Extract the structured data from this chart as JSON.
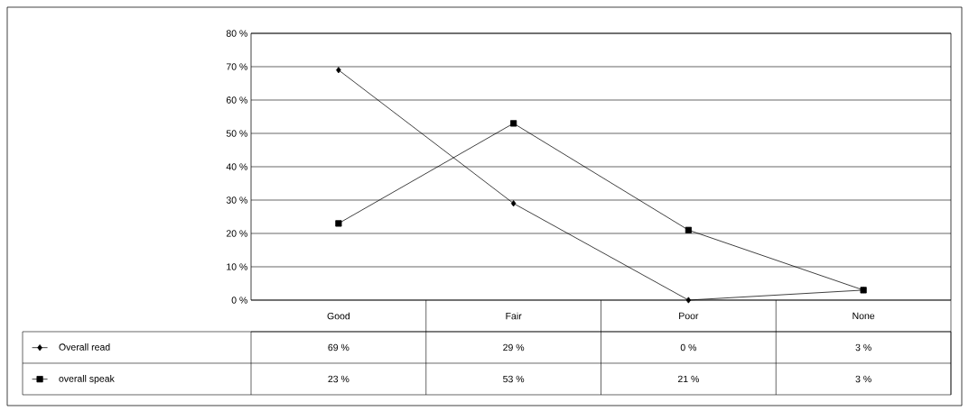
{
  "chart_data": {
    "type": "line",
    "categories": [
      "Good",
      "Fair",
      "Poor",
      "None"
    ],
    "series": [
      {
        "name": "Overall read",
        "color": "#000000",
        "marker": "diamond",
        "values": [
          69,
          29,
          0,
          3
        ],
        "value_labels": [
          "69 %",
          "29 %",
          "0 %",
          "3 %"
        ]
      },
      {
        "name": "overall speak",
        "color": "#000000",
        "marker": "square",
        "values": [
          23,
          53,
          21,
          3
        ],
        "value_labels": [
          "23 %",
          "53 %",
          "21 %",
          "3 %"
        ]
      }
    ],
    "ylim": [
      0,
      80
    ],
    "yticks": [
      {
        "value": 0,
        "label": "0 %"
      },
      {
        "value": 10,
        "label": "10 %"
      },
      {
        "value": 20,
        "label": "20 %"
      },
      {
        "value": 30,
        "label": "30 %"
      },
      {
        "value": 40,
        "label": "40 %"
      },
      {
        "value": 50,
        "label": "50 %"
      },
      {
        "value": 60,
        "label": "60 %"
      },
      {
        "value": 70,
        "label": "70 %"
      },
      {
        "value": 80,
        "label": "80 %"
      }
    ],
    "grid": "y",
    "legend": "bottom",
    "line_style": "solid"
  }
}
